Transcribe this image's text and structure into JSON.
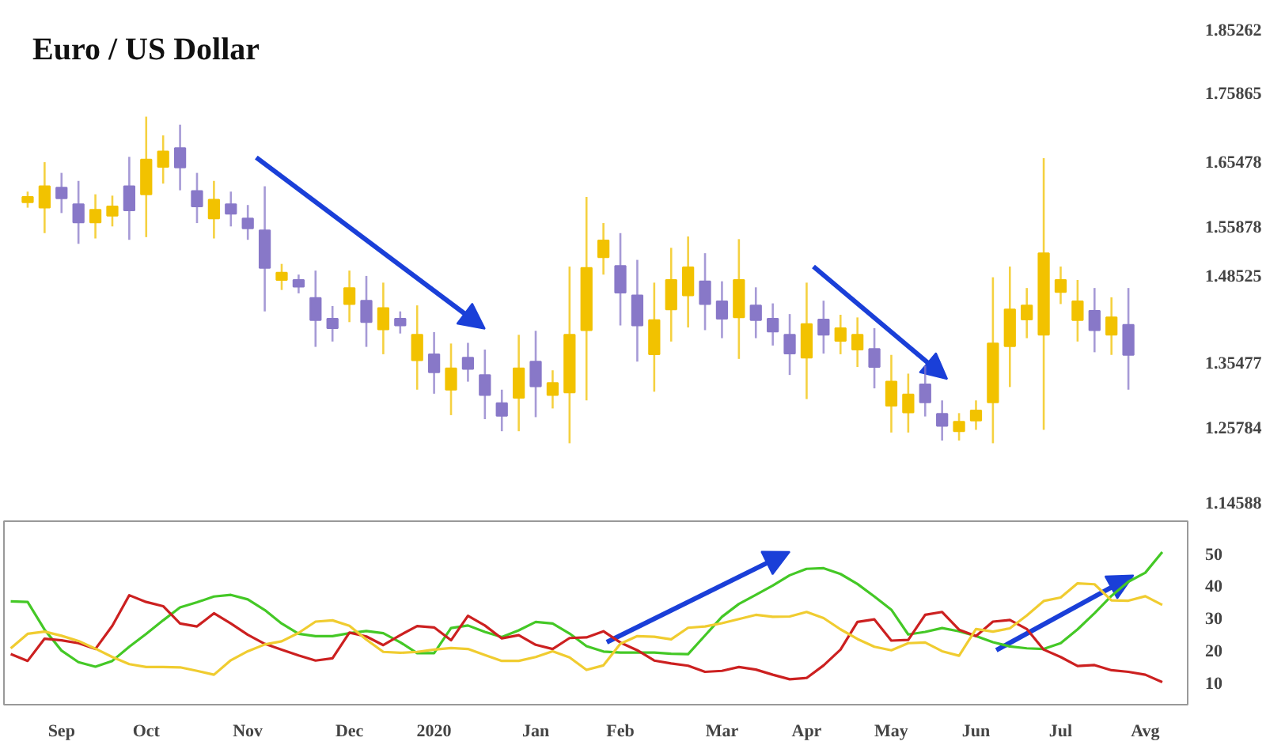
{
  "chart_data": [
    {
      "type": "candlestick",
      "title": "Euro / US Dollar",
      "tick_labels": "y",
      "categories": [
        null,
        null,
        null,
        null,
        null,
        null,
        null,
        null,
        null,
        null,
        null,
        null,
        null,
        null,
        null,
        null,
        null,
        null,
        null,
        null,
        null,
        null,
        null,
        null,
        null,
        null,
        null,
        null,
        null,
        null,
        null,
        null,
        null,
        null,
        null,
        null,
        null,
        null,
        null,
        null,
        null,
        null,
        null,
        null,
        null,
        null,
        null,
        null,
        null,
        null,
        null,
        null,
        null,
        null,
        null,
        null,
        null,
        null,
        null,
        null,
        null,
        null,
        null,
        null,
        null,
        null,
        null,
        null,
        null
      ],
      "ohlc": [
        null,
        [
          1.594,
          1.61,
          1.586,
          1.602
        ],
        [
          1.586,
          1.654,
          1.548,
          1.618
        ],
        [
          1.616,
          1.638,
          1.578,
          1.6
        ],
        [
          1.591,
          1.626,
          1.532,
          1.564
        ],
        [
          1.564,
          1.606,
          1.54,
          1.583
        ],
        [
          1.574,
          1.604,
          1.558,
          1.588
        ],
        [
          1.618,
          1.662,
          1.538,
          1.582
        ],
        [
          1.606,
          1.722,
          1.542,
          1.658
        ],
        [
          1.647,
          1.694,
          1.622,
          1.67
        ],
        [
          1.675,
          1.71,
          1.612,
          1.646
        ],
        [
          1.611,
          1.638,
          1.563,
          1.588
        ],
        [
          1.57,
          1.626,
          1.54,
          1.598
        ],
        [
          1.591,
          1.61,
          1.558,
          1.577
        ],
        [
          1.57,
          1.59,
          1.538,
          1.555
        ],
        [
          1.552,
          1.618,
          1.431,
          1.496
        ],
        [
          1.478,
          1.502,
          1.463,
          1.489
        ],
        [
          1.478,
          1.486,
          1.458,
          1.468
        ],
        [
          1.451,
          1.492,
          1.378,
          1.418
        ],
        [
          1.42,
          1.439,
          1.386,
          1.406
        ],
        [
          1.442,
          1.492,
          1.415,
          1.466
        ],
        [
          1.447,
          1.484,
          1.378,
          1.415
        ],
        [
          1.404,
          1.474,
          1.367,
          1.436
        ],
        [
          1.42,
          1.431,
          1.398,
          1.41
        ],
        [
          1.358,
          1.44,
          1.314,
          1.396
        ],
        [
          1.367,
          1.4,
          1.308,
          1.34
        ],
        [
          1.314,
          1.383,
          1.276,
          1.346
        ],
        [
          1.362,
          1.384,
          1.326,
          1.345
        ],
        [
          1.336,
          1.374,
          1.27,
          1.306
        ],
        [
          1.294,
          1.314,
          1.252,
          1.275
        ],
        [
          1.302,
          1.396,
          1.252,
          1.346
        ],
        [
          1.356,
          1.402,
          1.273,
          1.319
        ],
        [
          1.306,
          1.343,
          1.286,
          1.324
        ],
        [
          1.31,
          1.498,
          1.234,
          1.396
        ],
        [
          1.403,
          1.602,
          1.298,
          1.496
        ],
        [
          1.512,
          1.563,
          1.486,
          1.537
        ],
        [
          1.499,
          1.548,
          1.41,
          1.459
        ],
        [
          1.455,
          1.508,
          1.356,
          1.41
        ],
        [
          1.367,
          1.474,
          1.311,
          1.418
        ],
        [
          1.434,
          1.526,
          1.386,
          1.478
        ],
        [
          1.455,
          1.543,
          1.407,
          1.497
        ],
        [
          1.476,
          1.518,
          1.403,
          1.442
        ],
        [
          1.446,
          1.476,
          1.391,
          1.42
        ],
        [
          1.422,
          1.539,
          1.36,
          1.478
        ],
        [
          1.44,
          1.467,
          1.391,
          1.418
        ],
        [
          1.42,
          1.443,
          1.38,
          1.401
        ],
        [
          1.396,
          1.427,
          1.336,
          1.368
        ],
        [
          1.362,
          1.474,
          1.3,
          1.412
        ],
        [
          1.419,
          1.447,
          1.368,
          1.396
        ],
        [
          1.387,
          1.426,
          1.367,
          1.406
        ],
        [
          1.374,
          1.422,
          1.348,
          1.396
        ],
        [
          1.375,
          1.406,
          1.316,
          1.348
        ],
        [
          1.29,
          1.366,
          1.25,
          1.326
        ],
        [
          1.28,
          1.338,
          1.25,
          1.307
        ],
        [
          1.322,
          1.35,
          1.274,
          1.295
        ],
        [
          1.278,
          1.298,
          1.238,
          1.26
        ],
        [
          1.252,
          1.279,
          1.238,
          1.266
        ],
        [
          1.268,
          1.298,
          1.254,
          1.283
        ],
        [
          1.295,
          1.482,
          1.234,
          1.383
        ],
        [
          1.379,
          1.498,
          1.318,
          1.434
        ],
        [
          1.419,
          1.466,
          1.391,
          1.44
        ],
        [
          1.396,
          1.66,
          1.254,
          1.518
        ],
        [
          1.46,
          1.498,
          1.442,
          1.478
        ],
        [
          1.418,
          1.478,
          1.386,
          1.446
        ],
        [
          1.432,
          1.466,
          1.37,
          1.403
        ],
        [
          1.396,
          1.452,
          1.366,
          1.422
        ],
        [
          1.411,
          1.466,
          1.314,
          1.366
        ],
        null,
        null
      ],
      "colors": [
        null,
        "#f2c200",
        "#f2c200",
        "#8878c8",
        "#8878c8",
        "#f2c200",
        "#f2c200",
        "#8878c8",
        "#f2c200",
        "#f2c200",
        "#8878c8",
        "#8878c8",
        "#f2c200",
        "#8878c8",
        "#8878c8",
        "#8878c8",
        "#f2c200",
        "#8878c8",
        "#8878c8",
        "#8878c8",
        "#f2c200",
        "#8878c8",
        "#f2c200",
        "#8878c8",
        "#f2c200",
        "#8878c8",
        "#f2c200",
        "#8878c8",
        "#8878c8",
        "#8878c8",
        "#f2c200",
        "#8878c8",
        "#f2c200",
        "#f2c200",
        "#f2c200",
        "#f2c200",
        "#8878c8",
        "#8878c8",
        "#f2c200",
        "#f2c200",
        "#f2c200",
        "#8878c8",
        "#8878c8",
        "#f2c200",
        "#8878c8",
        "#8878c8",
        "#8878c8",
        "#f2c200",
        "#8878c8",
        "#f2c200",
        "#f2c200",
        "#8878c8",
        "#f2c200",
        "#f2c200",
        "#8878c8",
        "#8878c8",
        "#f2c200",
        "#f2c200",
        "#f2c200",
        "#f2c200",
        "#f2c200",
        "#f2c200",
        "#f2c200",
        "#f2c200",
        "#8878c8",
        "#f2c200",
        "#8878c8",
        null,
        null
      ],
      "ylim": [
        1.14588,
        1.85262
      ],
      "yticks": [
        1.14588,
        1.25784,
        1.35477,
        1.48525,
        1.55878,
        1.65478,
        1.75865,
        1.85262
      ]
    },
    {
      "type": "line",
      "ylim": [
        3,
        60
      ],
      "yticks": [
        10,
        20,
        30,
        40,
        50
      ],
      "categories": [
        null,
        null,
        null,
        "Sep",
        null,
        null,
        null,
        null,
        "Oct",
        null,
        null,
        null,
        null,
        null,
        "Nov",
        null,
        null,
        null,
        null,
        null,
        "Dec",
        null,
        null,
        null,
        null,
        "2020",
        null,
        null,
        null,
        null,
        null,
        "Jan",
        null,
        null,
        null,
        null,
        "Feb",
        null,
        null,
        null,
        null,
        null,
        "Mar",
        null,
        null,
        null,
        null,
        "Apr",
        null,
        null,
        null,
        null,
        "May",
        null,
        null,
        null,
        null,
        "Jun",
        null,
        null,
        null,
        null,
        "Jul",
        null,
        null,
        null,
        null,
        "Avg",
        null
      ],
      "series": [
        {
          "color": "#44c826",
          "values": [
            35.1,
            34.9,
            26.3,
            19.8,
            16.2,
            14.8,
            16.6,
            21.0,
            25.0,
            29.2,
            33.2,
            34.8,
            36.6,
            37.1,
            35.7,
            32.4,
            28.2,
            25.0,
            24.3,
            24.3,
            25.2,
            25.9,
            25.2,
            22.4,
            19.0,
            19.0,
            26.8,
            27.6,
            25.6,
            24.0,
            26.1,
            28.7,
            28.2,
            25.1,
            21.2,
            19.5,
            19.2,
            19.2,
            19.2,
            18.8,
            18.7,
            24.5,
            30.3,
            34.3,
            37.1,
            40.0,
            43.2,
            45.2,
            45.4,
            43.6,
            40.5,
            36.6,
            32.5,
            24.8,
            25.6,
            26.8,
            25.8,
            24.3,
            22.4,
            21.1,
            20.5,
            20.3,
            22.1,
            26.4,
            31.4,
            36.8,
            41.2,
            44.0,
            50.4
          ]
        },
        {
          "color": "#cc2020",
          "values": [
            18.7,
            16.6,
            23.5,
            23.0,
            22.1,
            20.3,
            27.5,
            37.0,
            34.9,
            33.6,
            28.2,
            27.3,
            31.4,
            28.2,
            24.7,
            21.9,
            20.1,
            18.3,
            16.7,
            17.4,
            25.4,
            24.2,
            21.5,
            24.6,
            27.4,
            27.0,
            23.0,
            30.6,
            27.6,
            23.6,
            24.6,
            21.6,
            20.3,
            23.7,
            23.9,
            25.8,
            22.3,
            19.9,
            16.7,
            15.8,
            15.1,
            13.2,
            13.5,
            14.7,
            13.9,
            12.3,
            10.9,
            11.3,
            15.2,
            20.1,
            28.7,
            29.5,
            22.9,
            23.1,
            30.9,
            31.8,
            26.3,
            24.3,
            28.8,
            29.3,
            26.5,
            20.1,
            17.8,
            15.0,
            15.3,
            13.7,
            13.2,
            12.3,
            10.0
          ]
        },
        {
          "color": "#f0cc30",
          "values": [
            20.5,
            25.0,
            25.7,
            24.4,
            22.8,
            20.4,
            17.8,
            15.6,
            14.7,
            14.7,
            14.6,
            13.5,
            12.3,
            16.8,
            19.6,
            21.7,
            22.7,
            25.3,
            28.8,
            29.2,
            27.5,
            23.2,
            19.4,
            19.1,
            19.4,
            20.1,
            20.6,
            20.3,
            18.4,
            16.6,
            16.6,
            17.8,
            19.6,
            17.7,
            13.8,
            15.2,
            21.9,
            24.3,
            24.1,
            23.3,
            26.9,
            27.3,
            28.3,
            29.6,
            30.9,
            30.3,
            30.4,
            31.8,
            29.9,
            26.4,
            23.4,
            21.0,
            19.9,
            22.1,
            22.3,
            19.6,
            18.2,
            26.5,
            25.7,
            26.7,
            30.7,
            35.2,
            36.3,
            40.7,
            40.4,
            35.4,
            35.3,
            36.7,
            34.0
          ]
        }
      ]
    }
  ]
}
